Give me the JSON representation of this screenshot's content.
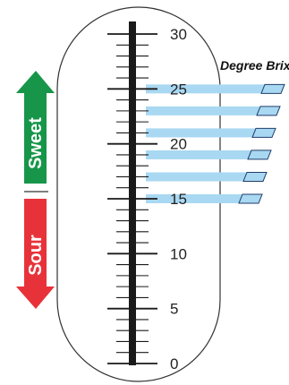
{
  "title": "Degree Brix",
  "sweet_label": "Sweet",
  "sour_label": "Sour",
  "scale": {
    "min": 0,
    "max": 30,
    "major_step": 5,
    "minor_step": 1,
    "labels": [
      "0",
      "5",
      "10",
      "15",
      "20",
      "25",
      "30"
    ]
  },
  "bands": {
    "count": 6,
    "top_value": 25,
    "bottom_value": 15
  },
  "colors": {
    "sweet": "#17964a",
    "sour": "#e8323a",
    "band": "#a9d8f2",
    "outline": "#333333",
    "scale": "#1a1a1a"
  }
}
